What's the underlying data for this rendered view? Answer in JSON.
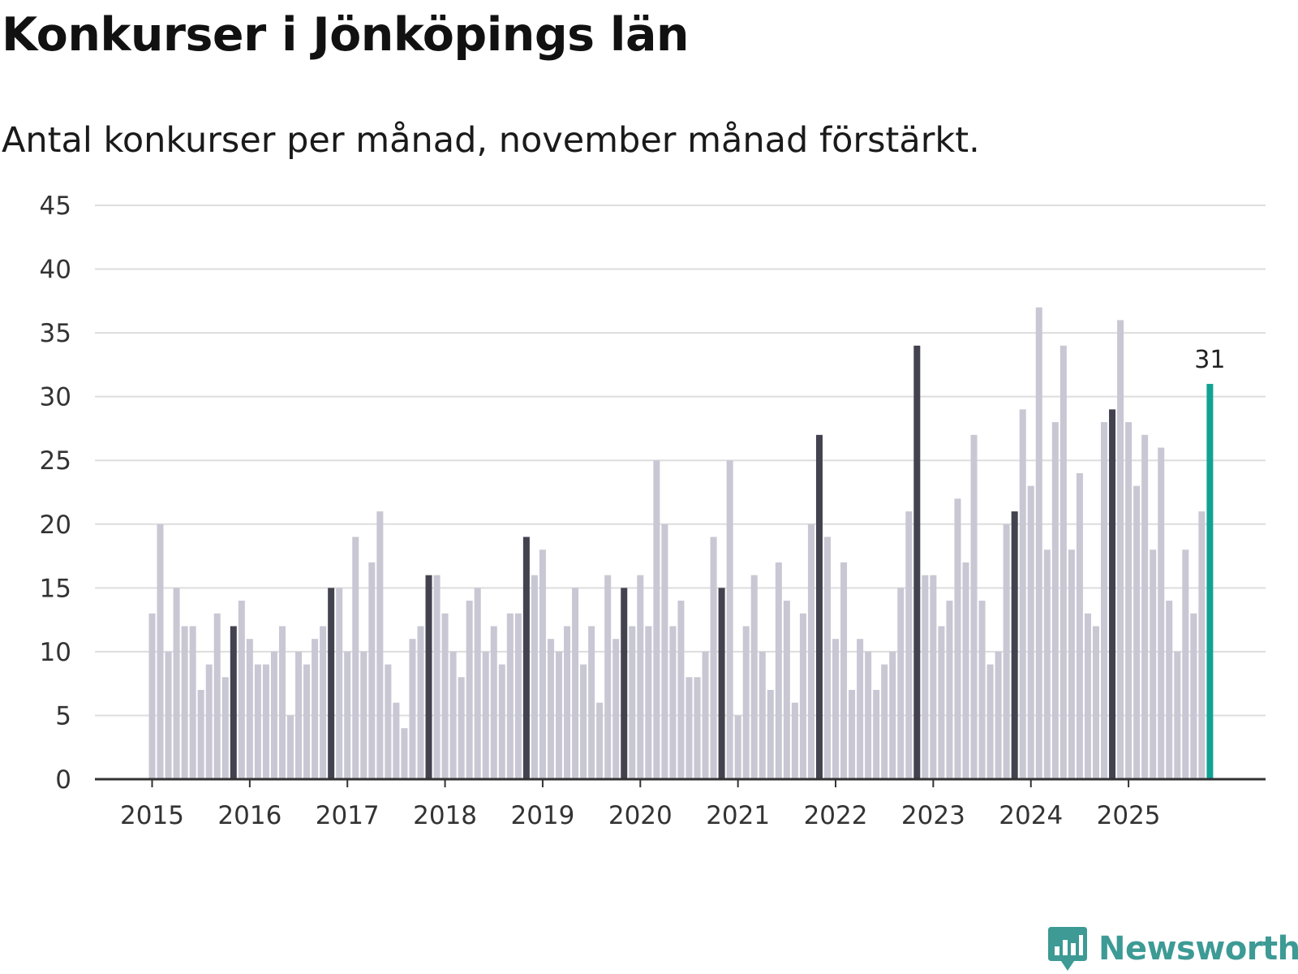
{
  "title": "Konkurser i Jönköpings län",
  "subtitle": "Antal konkurser per månad, november månad förstärkt.",
  "brand": {
    "name": "Newsworthy",
    "icon": "newsworthy-logo-icon"
  },
  "colors": {
    "bar_default": "#c8c7d3",
    "bar_highlight": "#43424f",
    "bar_latest": "#10a394",
    "grid": "#dddddd",
    "axis": "#333333",
    "brand": "#3d9a95"
  },
  "chart_data": {
    "type": "bar",
    "title": "Konkurser i Jönköpings län",
    "subtitle": "Antal konkurser per månad, november månad förstärkt.",
    "xlabel": "",
    "ylabel": "",
    "ylim": [
      0,
      45
    ],
    "yticks": [
      0,
      5,
      10,
      15,
      20,
      25,
      30,
      35,
      40,
      45
    ],
    "grid": true,
    "x_tick_labels": [
      "2015",
      "2016",
      "2017",
      "2018",
      "2019",
      "2020",
      "2021",
      "2022",
      "2023",
      "2024",
      "2025"
    ],
    "start": "2015-01",
    "highlight_month": "november",
    "annotation": {
      "label": "31",
      "month": "2025-11"
    },
    "values": [
      13,
      20,
      10,
      15,
      12,
      12,
      7,
      9,
      13,
      8,
      12,
      14,
      11,
      9,
      9,
      10,
      12,
      5,
      10,
      9,
      11,
      12,
      15,
      15,
      10,
      19,
      10,
      17,
      21,
      9,
      6,
      4,
      11,
      12,
      16,
      16,
      13,
      10,
      8,
      14,
      15,
      10,
      12,
      9,
      13,
      13,
      19,
      16,
      18,
      11,
      10,
      12,
      15,
      9,
      12,
      6,
      16,
      11,
      15,
      12,
      16,
      12,
      25,
      20,
      12,
      14,
      8,
      8,
      10,
      19,
      15,
      25,
      5,
      12,
      16,
      10,
      7,
      17,
      14,
      6,
      13,
      20,
      27,
      19,
      11,
      17,
      7,
      11,
      10,
      7,
      9,
      10,
      15,
      21,
      34,
      16,
      16,
      12,
      14,
      22,
      17,
      27,
      14,
      9,
      10,
      20,
      21,
      29,
      23,
      37,
      18,
      28,
      34,
      18,
      24,
      13,
      12,
      28,
      29,
      36,
      28,
      23,
      27,
      18,
      26,
      14,
      10,
      18,
      13,
      21,
      31
    ]
  }
}
